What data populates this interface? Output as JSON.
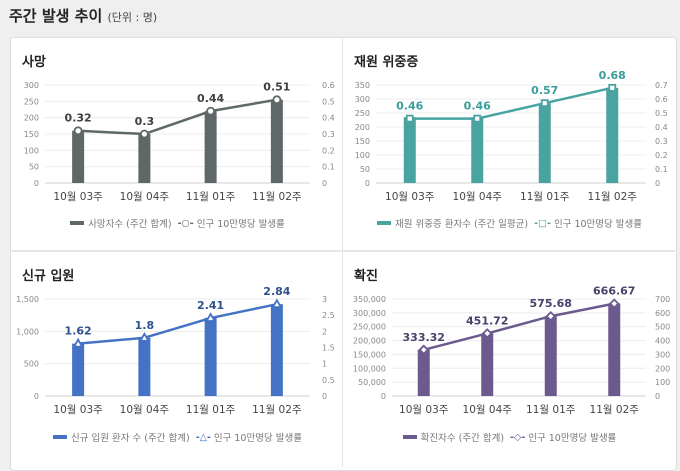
{
  "header": {
    "title": "주간 발생 추이",
    "unit": "(단위 : 명)"
  },
  "chart_data": [
    {
      "type": "bar+line",
      "title": "사망",
      "categories": [
        "10월 03주",
        "10월 04주",
        "11월 01주",
        "11월 02주"
      ],
      "series": [
        {
          "name": "사망자수 (주간 합계)",
          "type": "bar",
          "axis": "left",
          "values": [
            160,
            150,
            220,
            255
          ]
        },
        {
          "name": "인구 10만명당 발생률",
          "type": "line",
          "axis": "right",
          "marker": "circle",
          "values": [
            0.32,
            0.3,
            0.44,
            0.51
          ]
        }
      ],
      "left_ticks": [
        "0",
        "50",
        "100",
        "150",
        "200",
        "250",
        "300"
      ],
      "ylim": [
        0,
        300
      ],
      "right_ticks": [
        "0",
        "0.1",
        "0.2",
        "0.3",
        "0.4",
        "0.5",
        "0.6"
      ],
      "y2lim": [
        0,
        0.6
      ],
      "color": "#5f6868",
      "label_color": "#404040",
      "grid": true,
      "legend": "bottom"
    },
    {
      "type": "bar+line",
      "title": "재원 위중증",
      "categories": [
        "10월 03주",
        "10월 04주",
        "11월 01주",
        "11월 02주"
      ],
      "series": [
        {
          "name": "재원 위중증 환자수 (주간 일평균)",
          "type": "bar",
          "axis": "left",
          "values": [
            235,
            235,
            285,
            340
          ]
        },
        {
          "name": "인구 10만명당 발생률",
          "type": "line",
          "axis": "right",
          "marker": "square",
          "values": [
            0.46,
            0.46,
            0.57,
            0.68
          ]
        }
      ],
      "left_ticks": [
        "0",
        "50",
        "100",
        "150",
        "200",
        "250",
        "300",
        "350"
      ],
      "ylim": [
        0,
        350
      ],
      "right_ticks": [
        "0",
        "0.1",
        "0.2",
        "0.3",
        "0.4",
        "0.5",
        "0.6",
        "0.7"
      ],
      "y2lim": [
        0,
        0.7
      ],
      "color": "#48a3a1",
      "label_color": "#3a9d9b",
      "grid": true,
      "legend": "bottom"
    },
    {
      "type": "bar+line",
      "title": "신규 입원",
      "categories": [
        "10월 03주",
        "10월 04주",
        "11월 01주",
        "11월 02주"
      ],
      "series": [
        {
          "name": "신규 입원 환자 수 (주간 합계)",
          "type": "bar",
          "axis": "left",
          "values": [
            810,
            900,
            1210,
            1420
          ]
        },
        {
          "name": "인구 10만명당 발생률",
          "type": "line",
          "axis": "right",
          "marker": "triangle",
          "values": [
            1.62,
            1.8,
            2.41,
            2.84
          ]
        }
      ],
      "left_ticks": [
        "0",
        "500",
        "1,000",
        "1,500"
      ],
      "ylim": [
        0,
        1500
      ],
      "right_ticks": [
        "0",
        "0.5",
        "1",
        "1.5",
        "2",
        "2.5",
        "3"
      ],
      "y2lim": [
        0,
        3
      ],
      "color": "#4472c4",
      "label_color": "#2f528f",
      "grid": true,
      "legend": "bottom"
    },
    {
      "type": "bar+line",
      "title": "확진",
      "categories": [
        "10월 03주",
        "10월 04주",
        "11월 01주",
        "11월 02주"
      ],
      "series": [
        {
          "name": "확진자수 (주간 합계)",
          "type": "bar",
          "axis": "left",
          "values": [
            167000,
            226000,
            288000,
            334000
          ]
        },
        {
          "name": "인구 10만명당 발생률",
          "type": "line",
          "axis": "right",
          "marker": "diamond",
          "values": [
            333.32,
            451.72,
            575.68,
            666.67
          ]
        }
      ],
      "left_ticks": [
        "0",
        "50,000",
        "100,000",
        "150,000",
        "200,000",
        "250,000",
        "300,000",
        "350,000"
      ],
      "ylim": [
        0,
        350000
      ],
      "right_ticks": [
        "0",
        "100",
        "200",
        "300",
        "400",
        "500",
        "600",
        "700"
      ],
      "y2lim": [
        0,
        700
      ],
      "color": "#6a5a8e",
      "label_color": "#4b3f6b",
      "grid": true,
      "legend": "bottom"
    }
  ]
}
